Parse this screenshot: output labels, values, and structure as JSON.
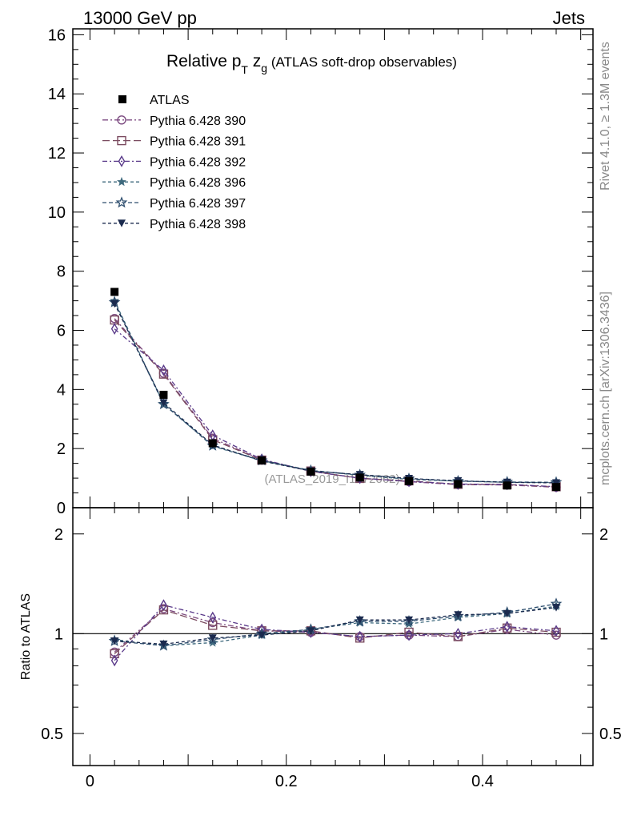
{
  "header": {
    "left": "13000 GeV pp",
    "right": "Jets"
  },
  "side_labels": {
    "rivet": "Rivet 4.1.0, ≥ 1.3M events",
    "mcplots": "mcplots.cern.ch [arXiv:1306.3436]"
  },
  "chart_data": {
    "type": "line",
    "title_main": "Relative p",
    "title_main_sub": "T",
    "title_var": "z",
    "title_var_sub": "g",
    "title_rest": "(ATLAS soft-drop observables)",
    "watermark": "(ATLAS_2019_I1772062)",
    "x": [
      0.025,
      0.075,
      0.125,
      0.175,
      0.225,
      0.275,
      0.325,
      0.375,
      0.425,
      0.475
    ],
    "xlim": [
      -0.0175,
      0.5125
    ],
    "main": {
      "ylim": [
        0,
        16.2
      ],
      "yticks": [
        0,
        2,
        4,
        6,
        8,
        10,
        12,
        14,
        16
      ],
      "ytick_labels": [
        "0",
        "2",
        "4",
        "6",
        "8",
        "10",
        "12",
        "14",
        "16"
      ]
    },
    "ratio": {
      "ylabel": "Ratio to ATLAS",
      "ylim": [
        0.4,
        2.4
      ],
      "log_scale": true,
      "yticks": [
        0.5,
        1,
        2
      ],
      "ytick_labels": [
        "0.5",
        "1",
        "2"
      ],
      "reference_line": 1
    },
    "xticks": [
      0,
      0.2,
      0.4
    ],
    "xtick_labels": [
      "0",
      "0.2",
      "0.4"
    ],
    "data": {
      "name": "ATLAS",
      "color": "#000000",
      "marker": "filled-square",
      "values": [
        7.3,
        3.82,
        2.18,
        1.6,
        1.22,
        1.02,
        0.9,
        0.8,
        0.75,
        0.7
      ]
    },
    "series": [
      {
        "name": "Pythia 6.428 390",
        "color": "#7c4a80",
        "marker": "open-circle",
        "dash": "7,3,2,3",
        "values": [
          6.4,
          4.55,
          2.35,
          1.62,
          1.23,
          1.0,
          0.88,
          0.78,
          0.77,
          0.69
        ],
        "ratio": [
          0.88,
          1.19,
          1.08,
          1.02,
          1.01,
          0.98,
          0.99,
          0.98,
          1.03,
          0.99
        ]
      },
      {
        "name": "Pythia 6.428 391",
        "color": "#7a4a5f",
        "marker": "open-square",
        "dash": "9,4",
        "values": [
          6.35,
          4.52,
          2.3,
          1.61,
          1.24,
          0.99,
          0.91,
          0.79,
          0.78,
          0.71
        ],
        "ratio": [
          0.87,
          1.18,
          1.06,
          1.02,
          1.02,
          0.97,
          1.01,
          0.98,
          1.04,
          1.01
        ]
      },
      {
        "name": "Pythia 6.428 392",
        "color": "#5a3a8a",
        "marker": "open-diamond",
        "dash": "6,3,2,3",
        "values": [
          6.05,
          4.65,
          2.45,
          1.64,
          1.23,
          1.0,
          0.89,
          0.8,
          0.79,
          0.71
        ],
        "ratio": [
          0.83,
          1.22,
          1.12,
          1.03,
          1.01,
          0.98,
          0.99,
          1.0,
          1.05,
          1.02
        ]
      },
      {
        "name": "Pythia 6.428 396",
        "color": "#3f6a7e",
        "marker": "star",
        "dash": "4,3",
        "values": [
          7.0,
          3.52,
          2.08,
          1.59,
          1.25,
          1.1,
          0.96,
          0.9,
          0.86,
          0.85
        ],
        "ratio": [
          0.96,
          0.92,
          0.94,
          0.99,
          1.03,
          1.08,
          1.07,
          1.12,
          1.15,
          1.21
        ]
      },
      {
        "name": "Pythia 6.428 397",
        "color": "#2e4e6e",
        "marker": "open-star",
        "dash": "5,3",
        "values": [
          6.95,
          3.5,
          2.1,
          1.6,
          1.26,
          1.11,
          0.98,
          0.9,
          0.87,
          0.86
        ],
        "ratio": [
          0.95,
          0.92,
          0.96,
          1.0,
          1.03,
          1.09,
          1.09,
          1.13,
          1.16,
          1.23
        ]
      },
      {
        "name": "Pythia 6.428 398",
        "color": "#1b2a4e",
        "marker": "filled-triangle-down",
        "dash": "4,3",
        "values": [
          6.9,
          3.55,
          2.12,
          1.58,
          1.24,
          1.12,
          0.99,
          0.91,
          0.86,
          0.84
        ],
        "ratio": [
          0.95,
          0.93,
          0.97,
          0.99,
          1.02,
          1.1,
          1.1,
          1.14,
          1.15,
          1.2
        ]
      }
    ]
  }
}
